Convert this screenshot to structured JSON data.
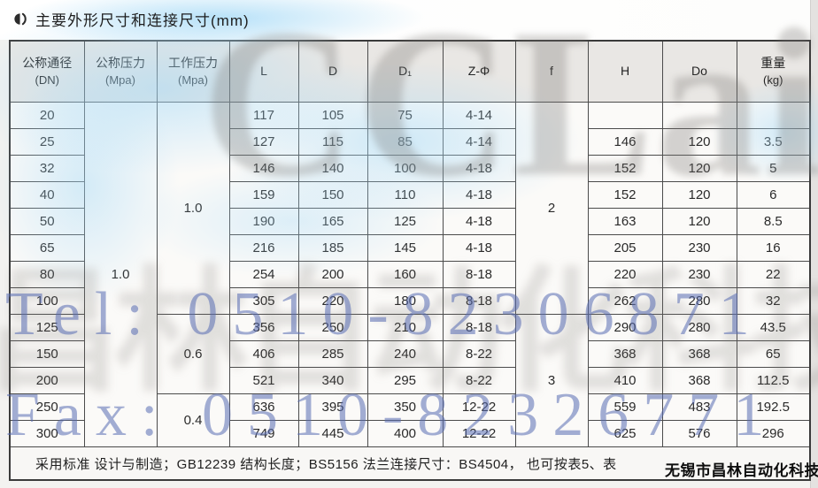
{
  "page": {
    "title": "主要外形尺寸和连接尺寸(mm)"
  },
  "table": {
    "columns": [
      {
        "id": "dn",
        "label": "公称通径",
        "sub": "(DN)"
      },
      {
        "id": "pn",
        "label": "公称压力",
        "sub": "(Mpa)"
      },
      {
        "id": "wp",
        "label": "工作压力",
        "sub": "(Mpa)"
      },
      {
        "id": "L",
        "label": "L"
      },
      {
        "id": "D",
        "label": "D"
      },
      {
        "id": "D1",
        "label": "D₁"
      },
      {
        "id": "Z",
        "label": "Z-Φ"
      },
      {
        "id": "f",
        "label": "f"
      },
      {
        "id": "H",
        "label": "H"
      },
      {
        "id": "Do",
        "label": "Do"
      },
      {
        "id": "wt",
        "label": "重量",
        "sub": "(kg)"
      }
    ],
    "merged": {
      "pn": [
        {
          "start": 0,
          "span": 13,
          "value": "1.0"
        }
      ],
      "wp": [
        {
          "start": 0,
          "span": 8,
          "value": "1.0"
        },
        {
          "start": 8,
          "span": 3,
          "value": "0.6"
        },
        {
          "start": 11,
          "span": 2,
          "value": "0.4"
        }
      ],
      "f": [
        {
          "start": 0,
          "span": 8,
          "value": "2"
        },
        {
          "start": 8,
          "span": 5,
          "value": "3"
        }
      ]
    },
    "rows": [
      {
        "dn": "20",
        "L": "117",
        "D": "105",
        "D1": "75",
        "Z": "4-14",
        "H": "",
        "Do": "",
        "wt": ""
      },
      {
        "dn": "25",
        "L": "127",
        "D": "115",
        "D1": "85",
        "Z": "4-14",
        "H": "146",
        "Do": "120",
        "wt": "3.5"
      },
      {
        "dn": "32",
        "L": "146",
        "D": "140",
        "D1": "100",
        "Z": "4-18",
        "H": "152",
        "Do": "120",
        "wt": "5"
      },
      {
        "dn": "40",
        "L": "159",
        "D": "150",
        "D1": "110",
        "Z": "4-18",
        "H": "152",
        "Do": "120",
        "wt": "6"
      },
      {
        "dn": "50",
        "L": "190",
        "D": "165",
        "D1": "125",
        "Z": "4-18",
        "H": "163",
        "Do": "120",
        "wt": "8.5"
      },
      {
        "dn": "65",
        "L": "216",
        "D": "185",
        "D1": "145",
        "Z": "4-18",
        "H": "205",
        "Do": "230",
        "wt": "16"
      },
      {
        "dn": "80",
        "L": "254",
        "D": "200",
        "D1": "160",
        "Z": "8-18",
        "H": "220",
        "Do": "230",
        "wt": "22"
      },
      {
        "dn": "100",
        "L": "305",
        "D": "220",
        "D1": "180",
        "Z": "8-18",
        "H": "262",
        "Do": "280",
        "wt": "32"
      },
      {
        "dn": "125",
        "L": "356",
        "D": "250",
        "D1": "210",
        "Z": "8-18",
        "H": "290",
        "Do": "280",
        "wt": "43.5"
      },
      {
        "dn": "150",
        "L": "406",
        "D": "285",
        "D1": "240",
        "Z": "8-22",
        "H": "368",
        "Do": "368",
        "wt": "65"
      },
      {
        "dn": "200",
        "L": "521",
        "D": "340",
        "D1": "295",
        "Z": "8-22",
        "H": "410",
        "Do": "368",
        "wt": "112.5"
      },
      {
        "dn": "250",
        "L": "636",
        "D": "395",
        "D1": "350",
        "Z": "12-22",
        "H": "559",
        "Do": "483",
        "wt": "192.5"
      },
      {
        "dn": "300",
        "L": "749",
        "D": "445",
        "D1": "400",
        "Z": "12-22",
        "H": "625",
        "Do": "576",
        "wt": "296"
      }
    ],
    "note": "采用标准  设计与制造；GB12239  结构长度；BS5156  法兰连接尺寸：BS4504， 也可按表5、表"
  },
  "watermark": {
    "brand": "CCLair",
    "brand_cn": "昌林自动化科技",
    "tel": "Tel: 0510-82306871",
    "fax": "Fax: 0510-82326771",
    "company": "无锡市昌林自动化科技",
    "colors": {
      "blue_text": "#586cb2",
      "gray_text": "#767470",
      "blue_wash": "#a3d8f6"
    }
  }
}
